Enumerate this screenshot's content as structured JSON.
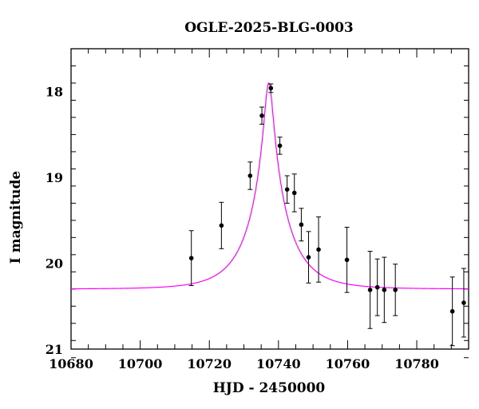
{
  "chart_data": {
    "type": "scatter",
    "title": "OGLE-2025-BLG-0003",
    "xlabel": "HJD - 2450000",
    "ylabel": "I magnitude",
    "xlim": [
      10680,
      10795
    ],
    "ylim": [
      21,
      17.5
    ],
    "y_inverted": true,
    "grid": false,
    "x_ticks": [
      10680,
      10700,
      10720,
      10740,
      10760,
      10780
    ],
    "y_ticks": [
      18,
      19,
      20,
      21
    ],
    "series": [
      {
        "kind": "points-with-errorbars",
        "color": "#000000",
        "points": [
          {
            "x": 10714.8,
            "y": 19.94,
            "err": 0.32
          },
          {
            "x": 10723.5,
            "y": 19.56,
            "err": 0.27
          },
          {
            "x": 10731.8,
            "y": 18.98,
            "err": 0.16
          },
          {
            "x": 10735.2,
            "y": 18.28,
            "err": 0.1
          },
          {
            "x": 10737.8,
            "y": 17.96,
            "err": 0.05
          },
          {
            "x": 10740.4,
            "y": 18.63,
            "err": 0.1
          },
          {
            "x": 10742.5,
            "y": 19.14,
            "err": 0.16
          },
          {
            "x": 10744.6,
            "y": 19.18,
            "err": 0.22
          },
          {
            "x": 10746.6,
            "y": 19.55,
            "err": 0.19
          },
          {
            "x": 10748.7,
            "y": 19.93,
            "err": 0.3
          },
          {
            "x": 10751.6,
            "y": 19.84,
            "err": 0.38
          },
          {
            "x": 10759.8,
            "y": 19.96,
            "err": 0.38
          },
          {
            "x": 10766.5,
            "y": 20.31,
            "err": 0.45
          },
          {
            "x": 10768.6,
            "y": 20.28,
            "err": 0.33
          },
          {
            "x": 10770.6,
            "y": 20.31,
            "err": 0.38
          },
          {
            "x": 10773.8,
            "y": 20.31,
            "err": 0.3
          },
          {
            "x": 10790.3,
            "y": 20.56,
            "err": 0.4
          },
          {
            "x": 10793.6,
            "y": 20.46,
            "err": 0.4
          }
        ]
      },
      {
        "kind": "model-curve",
        "color": "#ff00ff",
        "model": {
          "t0": 10737.2,
          "tE": 11.0,
          "u0": 0.11,
          "baseline": 20.3
        }
      }
    ]
  }
}
